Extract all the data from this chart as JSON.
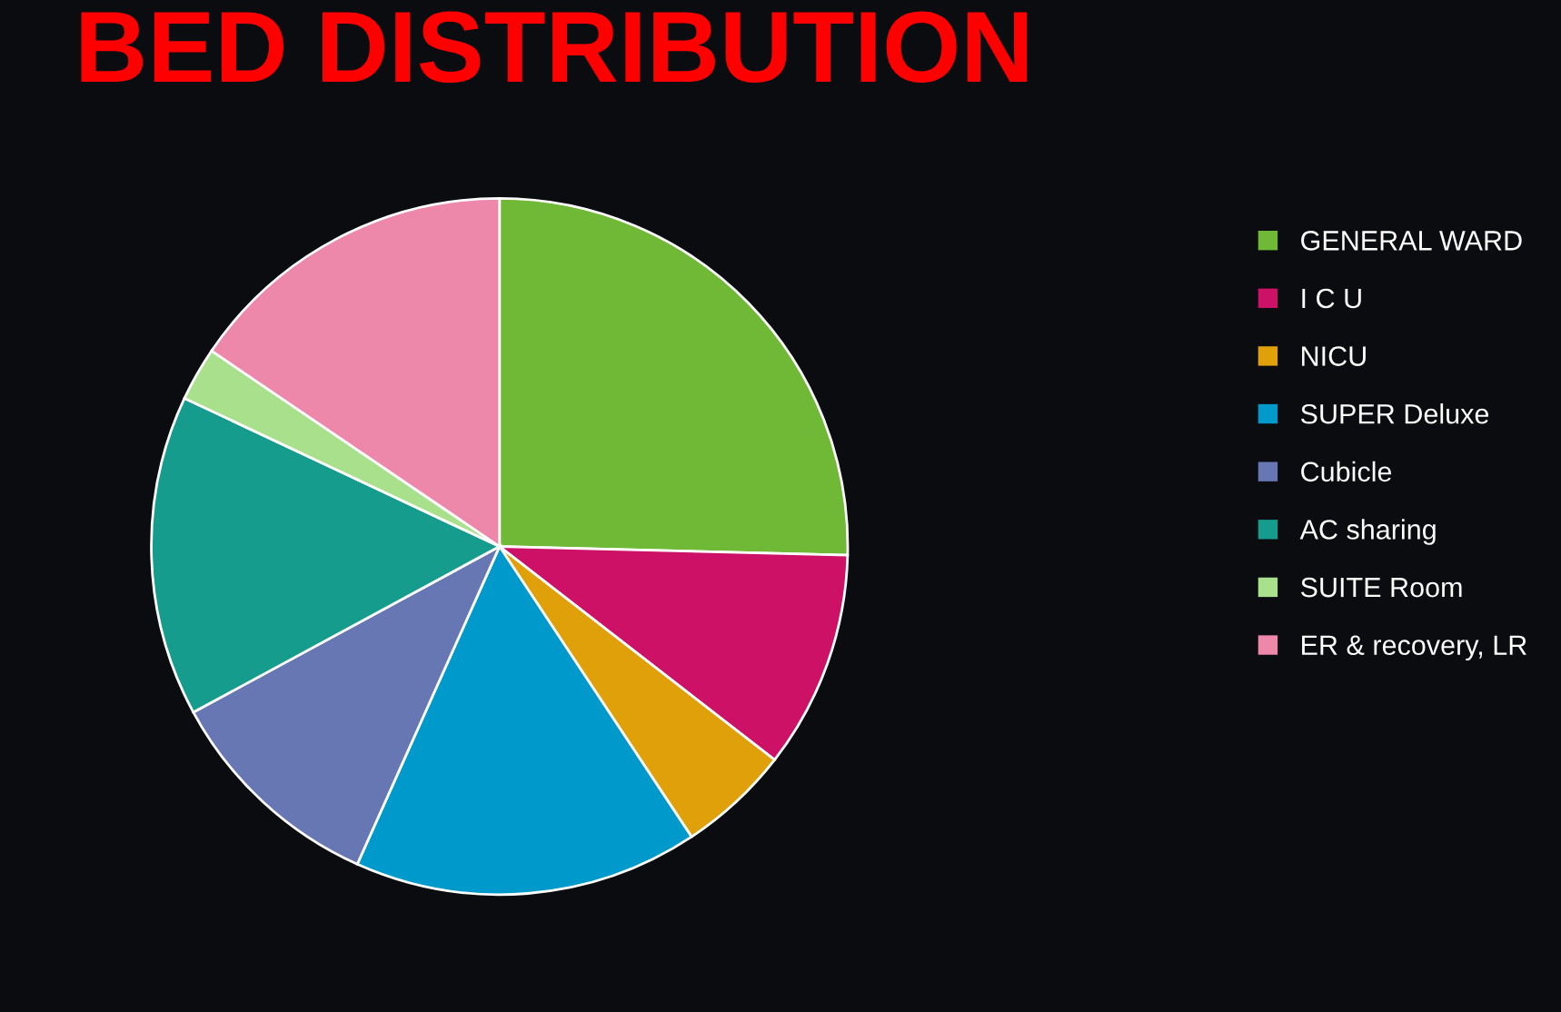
{
  "chart_data": {
    "type": "pie",
    "title": "BED DISTRIBUTION",
    "categories": [
      "GENERAL WARD",
      "I C U",
      "NICU",
      "SUPER Deluxe",
      "Cubicle",
      "AC sharing",
      "SUITE Room",
      "ER & recovery, LR"
    ],
    "values": [
      25.4,
      10.1,
      5.2,
      16.0,
      10.4,
      14.9,
      2.5,
      15.5
    ],
    "colors": [
      "#70b937",
      "#cc1166",
      "#e0a00a",
      "#0099cc",
      "#6677b3",
      "#169c8c",
      "#a8e08c",
      "#ee88aa"
    ],
    "legend": "right"
  }
}
